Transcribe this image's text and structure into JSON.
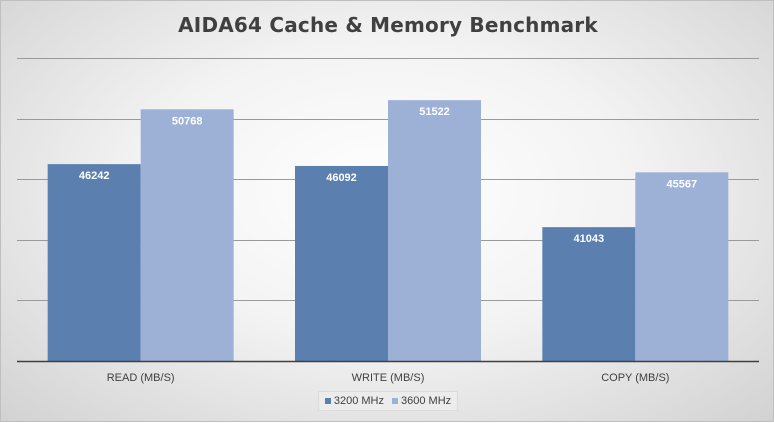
{
  "chart_data": {
    "type": "bar",
    "title": "AIDA64 Cache & Memory Benchmark",
    "categories": [
      "READ (MB/S)",
      "WRITE (MB/S)",
      "COPY (MB/S)"
    ],
    "series": [
      {
        "name": "3200 MHz",
        "values": [
          46242,
          46092,
          41043
        ],
        "color": "#5b7fae"
      },
      {
        "name": "3600 MHz",
        "values": [
          50768,
          51522,
          45567
        ],
        "color": "#9db1d6"
      }
    ],
    "ylim": [
      30000,
      55000
    ],
    "grid": true,
    "legend_position": "bottom"
  }
}
